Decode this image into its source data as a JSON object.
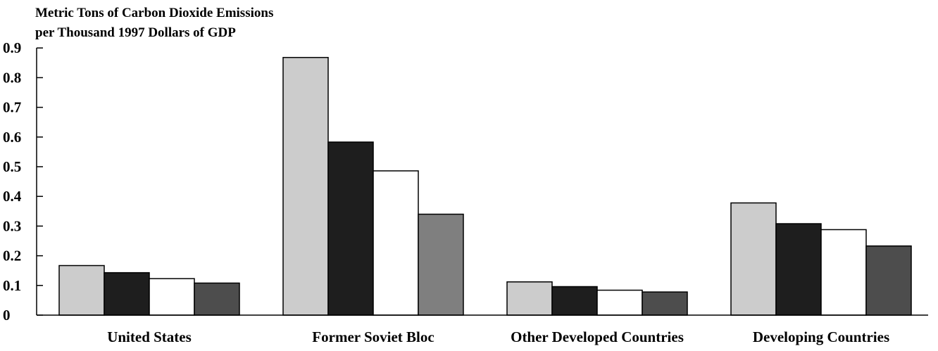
{
  "chart_data": {
    "type": "bar",
    "ylabel_lines": [
      "Metric Tons of Carbon Dioxide Emissions",
      "per Thousand 1997 Dollars of GDP"
    ],
    "y_ticks": [
      "0",
      "0.1",
      "0.2",
      "0.3",
      "0.4",
      "0.5",
      "0.6",
      "0.7",
      "0.8",
      "0.9"
    ],
    "ylim": [
      0,
      0.9
    ],
    "grid": false,
    "categories": [
      "United States",
      "Former Soviet Bloc",
      "Other Developed Countries",
      "Developing Countries"
    ],
    "series": [
      {
        "color": "#cccccc",
        "values": [
          0.167,
          0.868,
          0.112,
          0.378
        ]
      },
      {
        "color": "#1e1e1e",
        "values": [
          0.143,
          0.583,
          0.096,
          0.308
        ]
      },
      {
        "color": "#ffffff",
        "values": [
          0.123,
          0.486,
          0.084,
          0.288
        ]
      },
      {
        "color": "#4d4d4d",
        "values": [
          0.108,
          0.34,
          0.078,
          0.233
        ],
        "colors_by_category": [
          "#4d4d4d",
          "#7f7f7f",
          "#4d4d4d",
          "#4d4d4d"
        ]
      }
    ]
  }
}
